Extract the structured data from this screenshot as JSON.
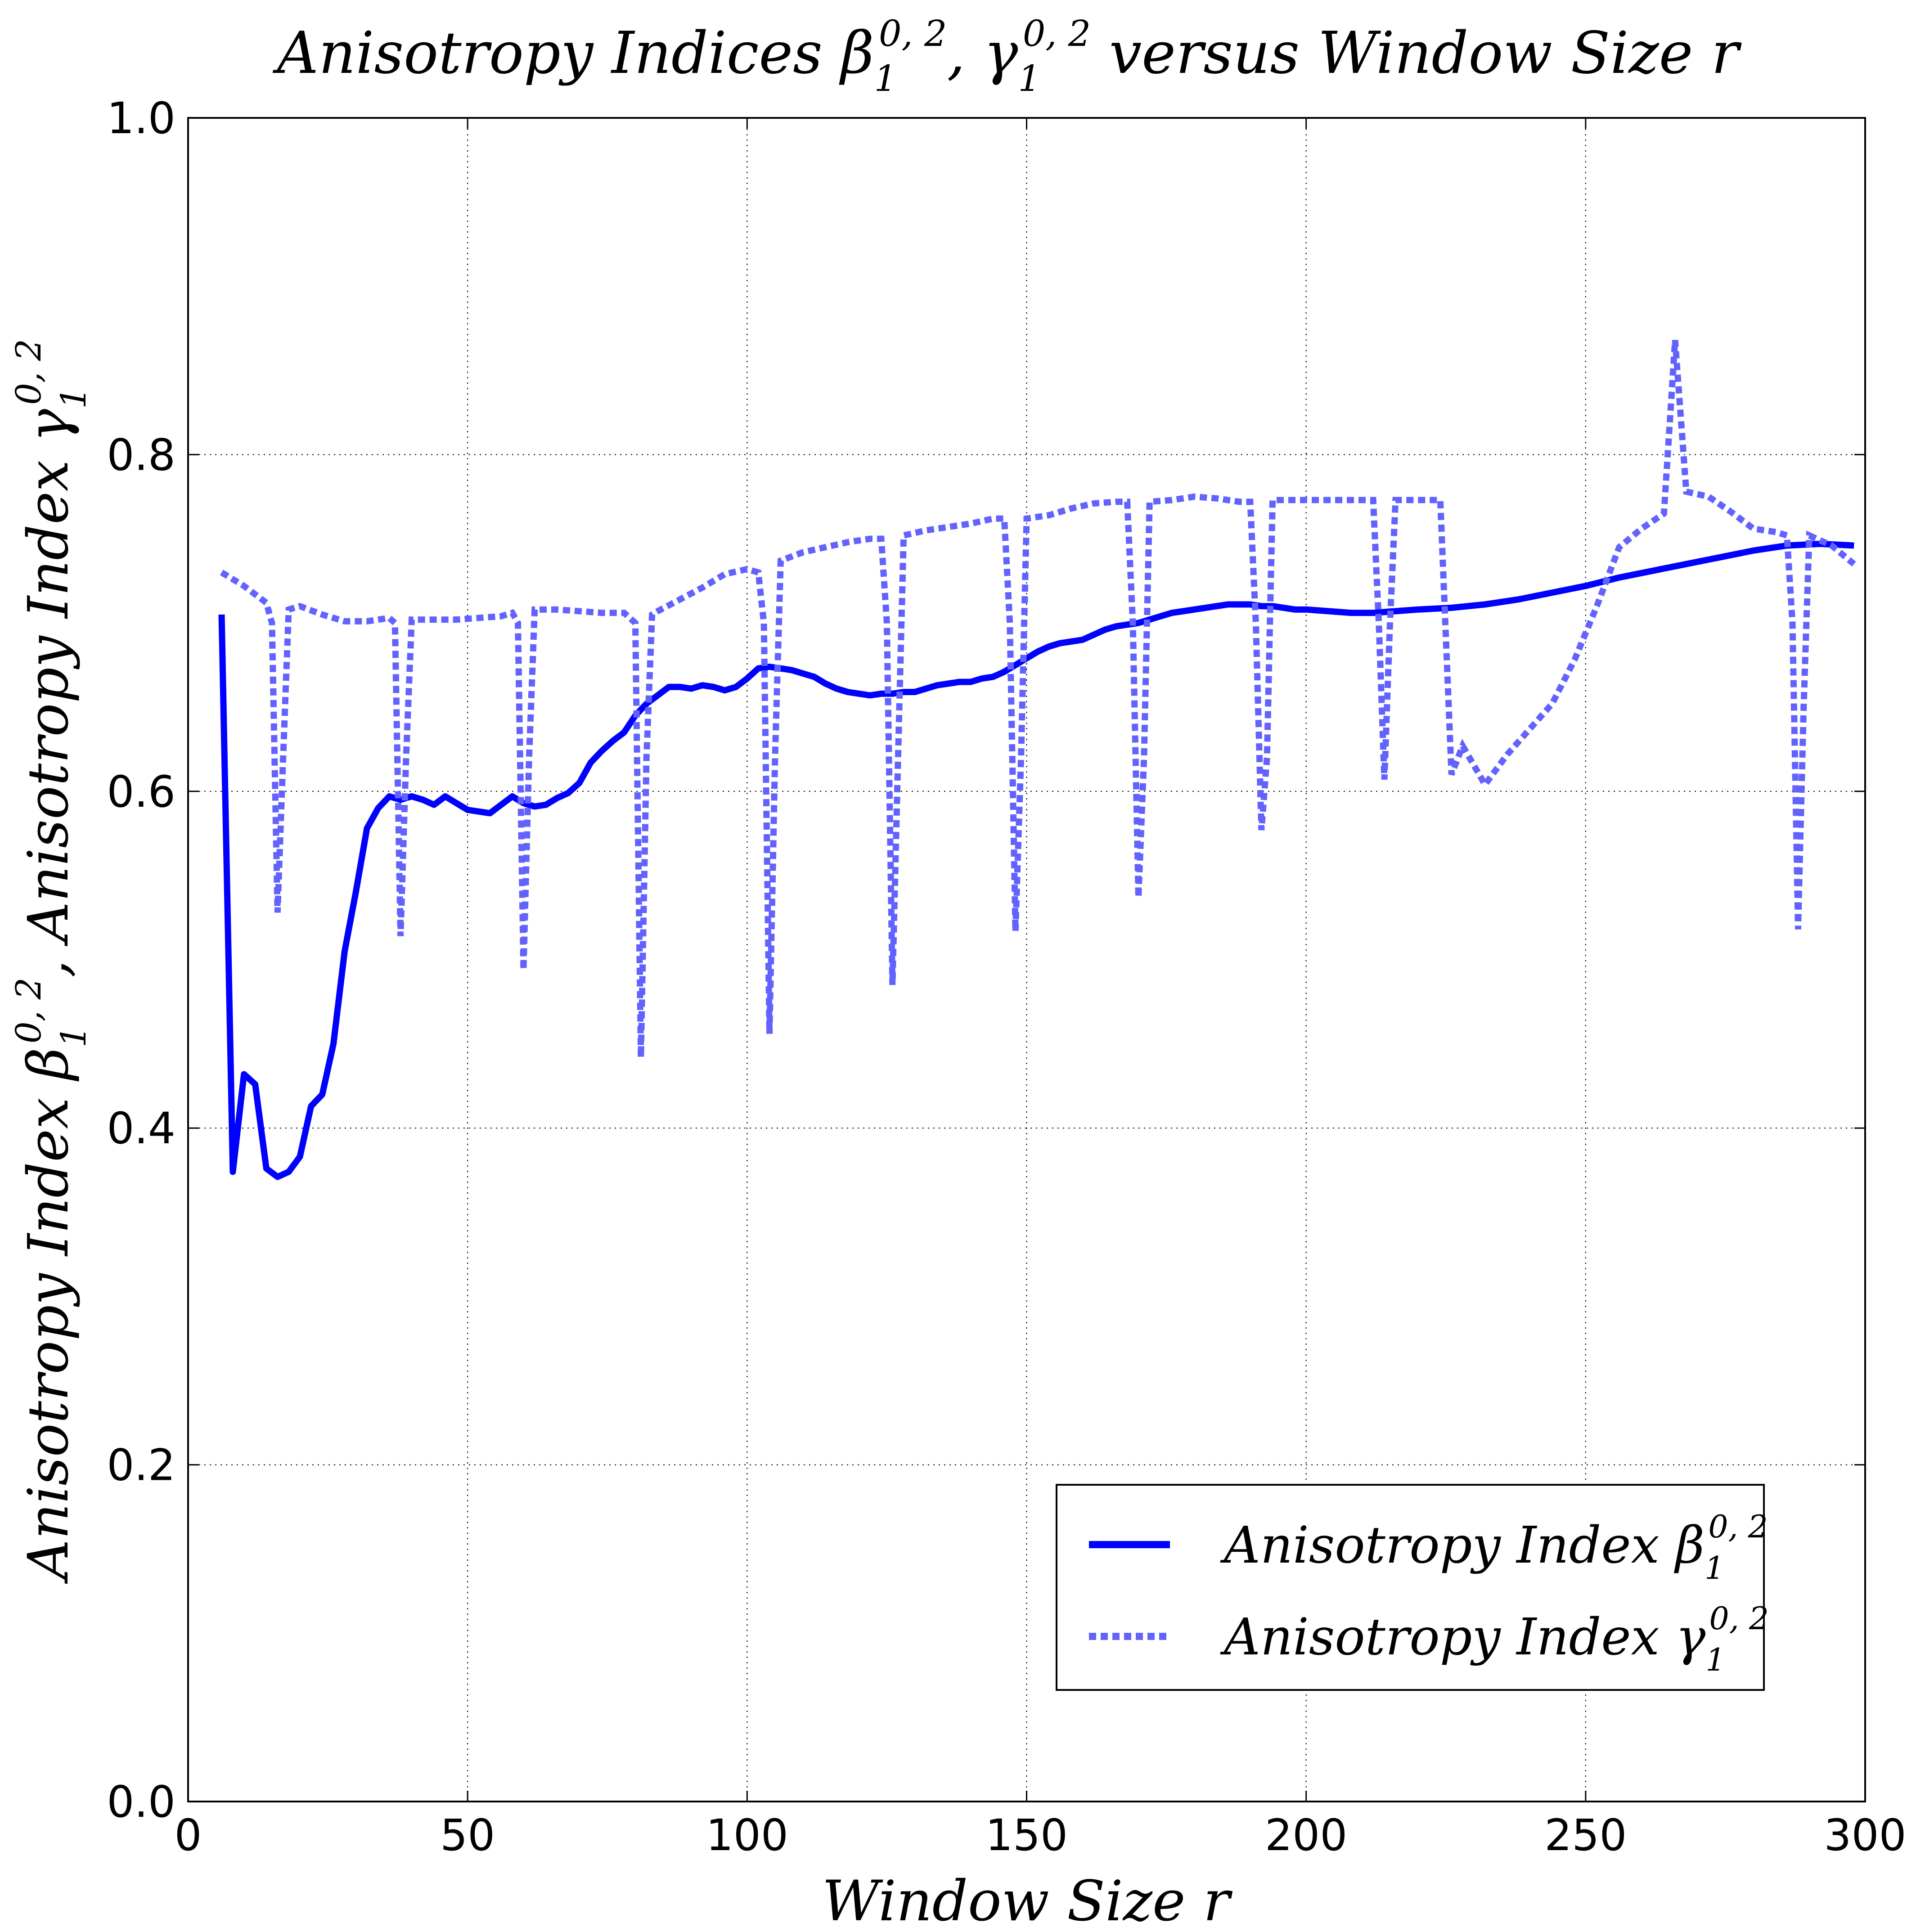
{
  "chart_data": {
    "type": "line",
    "title": {
      "pre": "Anisotropy Indices ",
      "beta": "β",
      "gamma": "γ",
      "sub": "1",
      "sup": "0, 2",
      "comma": ", ",
      "post": " versus Window Size r"
    },
    "xlabel": "Window Size r",
    "ylabel": {
      "part1": "Anisotropy Index ",
      "beta": "β",
      "sup": "0, 2",
      "sub": "1",
      "sep": ",  ",
      "part2": "Anisotropy Index ",
      "gamma": "γ"
    },
    "xlim": [
      0,
      300
    ],
    "ylim": [
      0.0,
      1.0
    ],
    "xticks": [
      "0",
      "50",
      "100",
      "150",
      "200",
      "250",
      "300"
    ],
    "yticks": [
      "0.0",
      "0.2",
      "0.4",
      "0.6",
      "0.8",
      "1.0"
    ],
    "grid": true,
    "legend_position": "lower-right",
    "series": [
      {
        "name": "Anisotropy Index β",
        "legend_text": "Anisotropy Index β",
        "legend_sup": "0, 2",
        "legend_sub": "1",
        "style": "solid",
        "color": "#0000ff",
        "x": [
          6,
          8,
          10,
          12,
          14,
          16,
          18,
          20,
          22,
          24,
          26,
          28,
          30,
          32,
          34,
          36,
          38,
          40,
          42,
          44,
          46,
          48,
          50,
          52,
          54,
          56,
          58,
          60,
          62,
          64,
          66,
          68,
          70,
          72,
          74,
          76,
          78,
          80,
          82,
          84,
          86,
          88,
          90,
          92,
          94,
          96,
          98,
          100,
          102,
          104,
          106,
          108,
          110,
          112,
          114,
          116,
          118,
          120,
          122,
          124,
          126,
          128,
          130,
          132,
          134,
          136,
          138,
          140,
          142,
          144,
          146,
          148,
          150,
          152,
          154,
          156,
          158,
          160,
          162,
          164,
          166,
          168,
          170,
          172,
          174,
          176,
          178,
          180,
          182,
          184,
          186,
          188,
          190,
          192,
          194,
          196,
          198,
          200,
          204,
          208,
          212,
          216,
          220,
          226,
          232,
          238,
          244,
          250,
          256,
          262,
          268,
          274,
          280,
          286,
          292,
          298
        ],
        "values": [
          0.705,
          0.374,
          0.432,
          0.426,
          0.376,
          0.371,
          0.374,
          0.383,
          0.413,
          0.42,
          0.45,
          0.505,
          0.54,
          0.578,
          0.59,
          0.597,
          0.595,
          0.597,
          0.595,
          0.592,
          0.597,
          0.593,
          0.589,
          0.588,
          0.587,
          0.592,
          0.597,
          0.593,
          0.591,
          0.592,
          0.596,
          0.599,
          0.605,
          0.617,
          0.624,
          0.63,
          0.635,
          0.645,
          0.652,
          0.657,
          0.662,
          0.662,
          0.661,
          0.663,
          0.662,
          0.66,
          0.662,
          0.667,
          0.673,
          0.674,
          0.673,
          0.672,
          0.67,
          0.668,
          0.664,
          0.661,
          0.659,
          0.658,
          0.657,
          0.658,
          0.658,
          0.659,
          0.659,
          0.661,
          0.663,
          0.664,
          0.665,
          0.665,
          0.667,
          0.668,
          0.671,
          0.675,
          0.679,
          0.683,
          0.686,
          0.688,
          0.689,
          0.69,
          0.693,
          0.696,
          0.698,
          0.699,
          0.7,
          0.702,
          0.704,
          0.706,
          0.707,
          0.708,
          0.709,
          0.71,
          0.711,
          0.711,
          0.711,
          0.71,
          0.71,
          0.709,
          0.708,
          0.708,
          0.707,
          0.706,
          0.706,
          0.707,
          0.708,
          0.709,
          0.711,
          0.714,
          0.718,
          0.722,
          0.727,
          0.731,
          0.735,
          0.739,
          0.743,
          0.746,
          0.747,
          0.746
        ]
      },
      {
        "name": "Anisotropy Index γ",
        "legend_text": "Anisotropy Index γ",
        "legend_sup": "0, 2",
        "legend_sub": "1",
        "style": "dotted",
        "color": "#6262ff",
        "x": [
          6,
          10,
          14,
          15,
          16,
          17,
          18,
          20,
          24,
          28,
          32,
          36,
          37,
          38,
          39,
          40,
          44,
          48,
          52,
          56,
          58,
          59,
          60,
          61,
          62,
          66,
          70,
          74,
          78,
          80,
          81,
          82,
          83,
          84,
          88,
          92,
          96,
          100,
          102,
          103,
          104,
          105,
          106,
          110,
          114,
          118,
          122,
          124,
          125,
          126,
          127,
          128,
          132,
          136,
          140,
          144,
          146,
          147,
          148,
          149,
          150,
          154,
          158,
          162,
          166,
          168,
          169,
          170,
          171,
          172,
          176,
          180,
          184,
          188,
          190,
          191,
          192,
          193,
          194,
          198,
          202,
          206,
          210,
          212,
          213,
          214,
          215,
          216,
          220,
          224,
          226,
          228,
          232,
          236,
          240,
          244,
          248,
          252,
          256,
          260,
          264,
          266,
          268,
          272,
          276,
          280,
          284,
          286,
          287,
          288,
          289,
          290,
          294,
          298
        ],
        "values": [
          0.73,
          0.722,
          0.712,
          0.7,
          0.528,
          0.62,
          0.708,
          0.71,
          0.705,
          0.701,
          0.701,
          0.703,
          0.7,
          0.514,
          0.62,
          0.702,
          0.702,
          0.702,
          0.703,
          0.704,
          0.706,
          0.7,
          0.494,
          0.62,
          0.708,
          0.708,
          0.707,
          0.706,
          0.706,
          0.7,
          0.442,
          0.62,
          0.705,
          0.707,
          0.714,
          0.721,
          0.729,
          0.732,
          0.73,
          0.7,
          0.456,
          0.62,
          0.737,
          0.742,
          0.745,
          0.748,
          0.75,
          0.75,
          0.7,
          0.485,
          0.62,
          0.752,
          0.755,
          0.757,
          0.759,
          0.762,
          0.762,
          0.7,
          0.517,
          0.62,
          0.762,
          0.764,
          0.768,
          0.771,
          0.772,
          0.772,
          0.7,
          0.537,
          0.62,
          0.772,
          0.773,
          0.775,
          0.774,
          0.772,
          0.772,
          0.7,
          0.577,
          0.62,
          0.773,
          0.773,
          0.773,
          0.773,
          0.773,
          0.773,
          0.7,
          0.607,
          0.7,
          0.773,
          0.773,
          0.773,
          0.61,
          0.627,
          0.604,
          0.622,
          0.637,
          0.652,
          0.678,
          0.71,
          0.745,
          0.756,
          0.765,
          0.868,
          0.778,
          0.775,
          0.766,
          0.756,
          0.754,
          0.752,
          0.7,
          0.518,
          0.65,
          0.752,
          0.746,
          0.735
        ]
      }
    ]
  }
}
